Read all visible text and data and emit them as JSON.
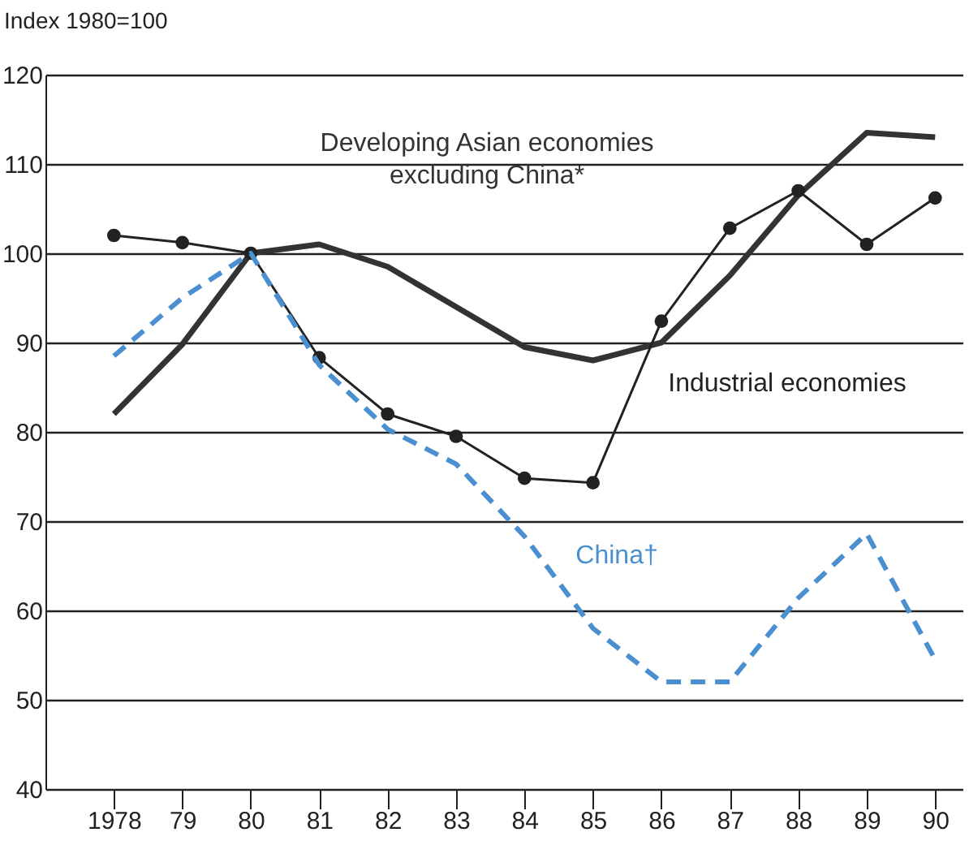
{
  "chart_data": {
    "type": "line",
    "ylabel": "Index 1980=100",
    "x": [
      1978,
      1979,
      1980,
      1981,
      1982,
      1983,
      1984,
      1985,
      1986,
      1987,
      1988,
      1989,
      1990
    ],
    "xlim": [
      1977,
      1990.4
    ],
    "xticks": [
      {
        "value": 1978,
        "label": "1978"
      },
      {
        "value": 1979,
        "label": "79"
      },
      {
        "value": 1980,
        "label": "80"
      },
      {
        "value": 1981,
        "label": "81"
      },
      {
        "value": 1982,
        "label": "82"
      },
      {
        "value": 1983,
        "label": "83"
      },
      {
        "value": 1984,
        "label": "84"
      },
      {
        "value": 1985,
        "label": "85"
      },
      {
        "value": 1986,
        "label": "86"
      },
      {
        "value": 1987,
        "label": "87"
      },
      {
        "value": 1988,
        "label": "88"
      },
      {
        "value": 1989,
        "label": "89"
      },
      {
        "value": 1990,
        "label": "90"
      }
    ],
    "ylim": [
      40,
      120
    ],
    "yticks": [
      40,
      50,
      60,
      70,
      80,
      90,
      100,
      110,
      120
    ],
    "grid": "y",
    "series": [
      {
        "name": "Developing Asian economies\nexcluding China*",
        "color": "#333333",
        "marker": "none",
        "line_style": "solid",
        "values": [
          82,
          89.8,
          100,
          101,
          98.5,
          94,
          89.5,
          88,
          90,
          97.5,
          106.5,
          113.5,
          113
        ]
      },
      {
        "name": "Industrial economies",
        "color": "#222222",
        "marker": "circle",
        "line_style": "solid",
        "values": [
          102,
          101.2,
          100,
          88.3,
          82,
          79.5,
          74.8,
          74.3,
          92.4,
          102.8,
          107,
          101,
          106.2
        ]
      },
      {
        "name": "China†",
        "color": "#4a90d0",
        "marker": "none",
        "line_style": "dashed",
        "values": [
          88.5,
          95,
          100,
          87.5,
          80.3,
          76.4,
          68.3,
          58,
          52,
          52,
          61.4,
          68.6,
          54.5
        ]
      }
    ]
  }
}
